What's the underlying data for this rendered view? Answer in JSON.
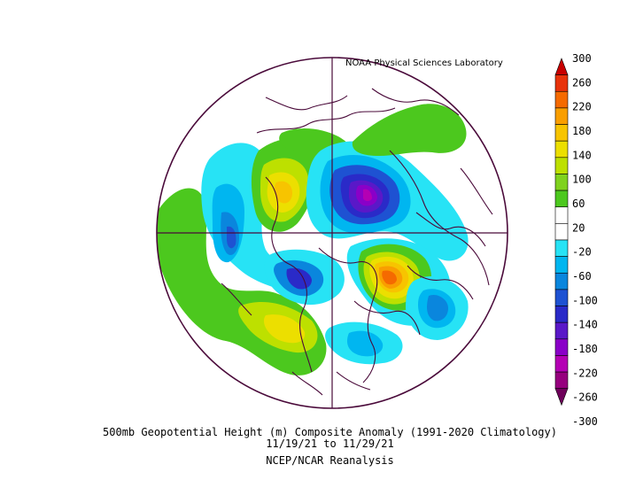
{
  "credit": "NOAA Physical Sciences Laboratory",
  "title": "500mb Geopotential Height (m) Composite Anomaly (1991-2020 Climatology)",
  "date_range": "11/19/21   to 11/29/21",
  "source": "NCEP/NCAR Reanalysis",
  "colorbar": {
    "labels": [
      "300",
      "260",
      "220",
      "180",
      "140",
      "100",
      "60",
      "20",
      "-20",
      "-60",
      "-100",
      "-140",
      "-180",
      "-220",
      "-260",
      "-300"
    ],
    "colors": [
      "#c80000",
      "#e8320a",
      "#f56a00",
      "#f99e00",
      "#f7c400",
      "#ecdf00",
      "#bde000",
      "#7fd21e",
      "#4cc81e",
      "#ffffff",
      "#ffffff",
      "#27e3f5",
      "#00b6f0",
      "#0a86dd",
      "#1e52d2",
      "#2a2ac8",
      "#5a18c8",
      "#8a00c8",
      "#b400b4",
      "#96007e",
      "#6e005a"
    ]
  },
  "map": {
    "projection": "polar-stereographic",
    "border_color": "#4a0a3a"
  }
}
